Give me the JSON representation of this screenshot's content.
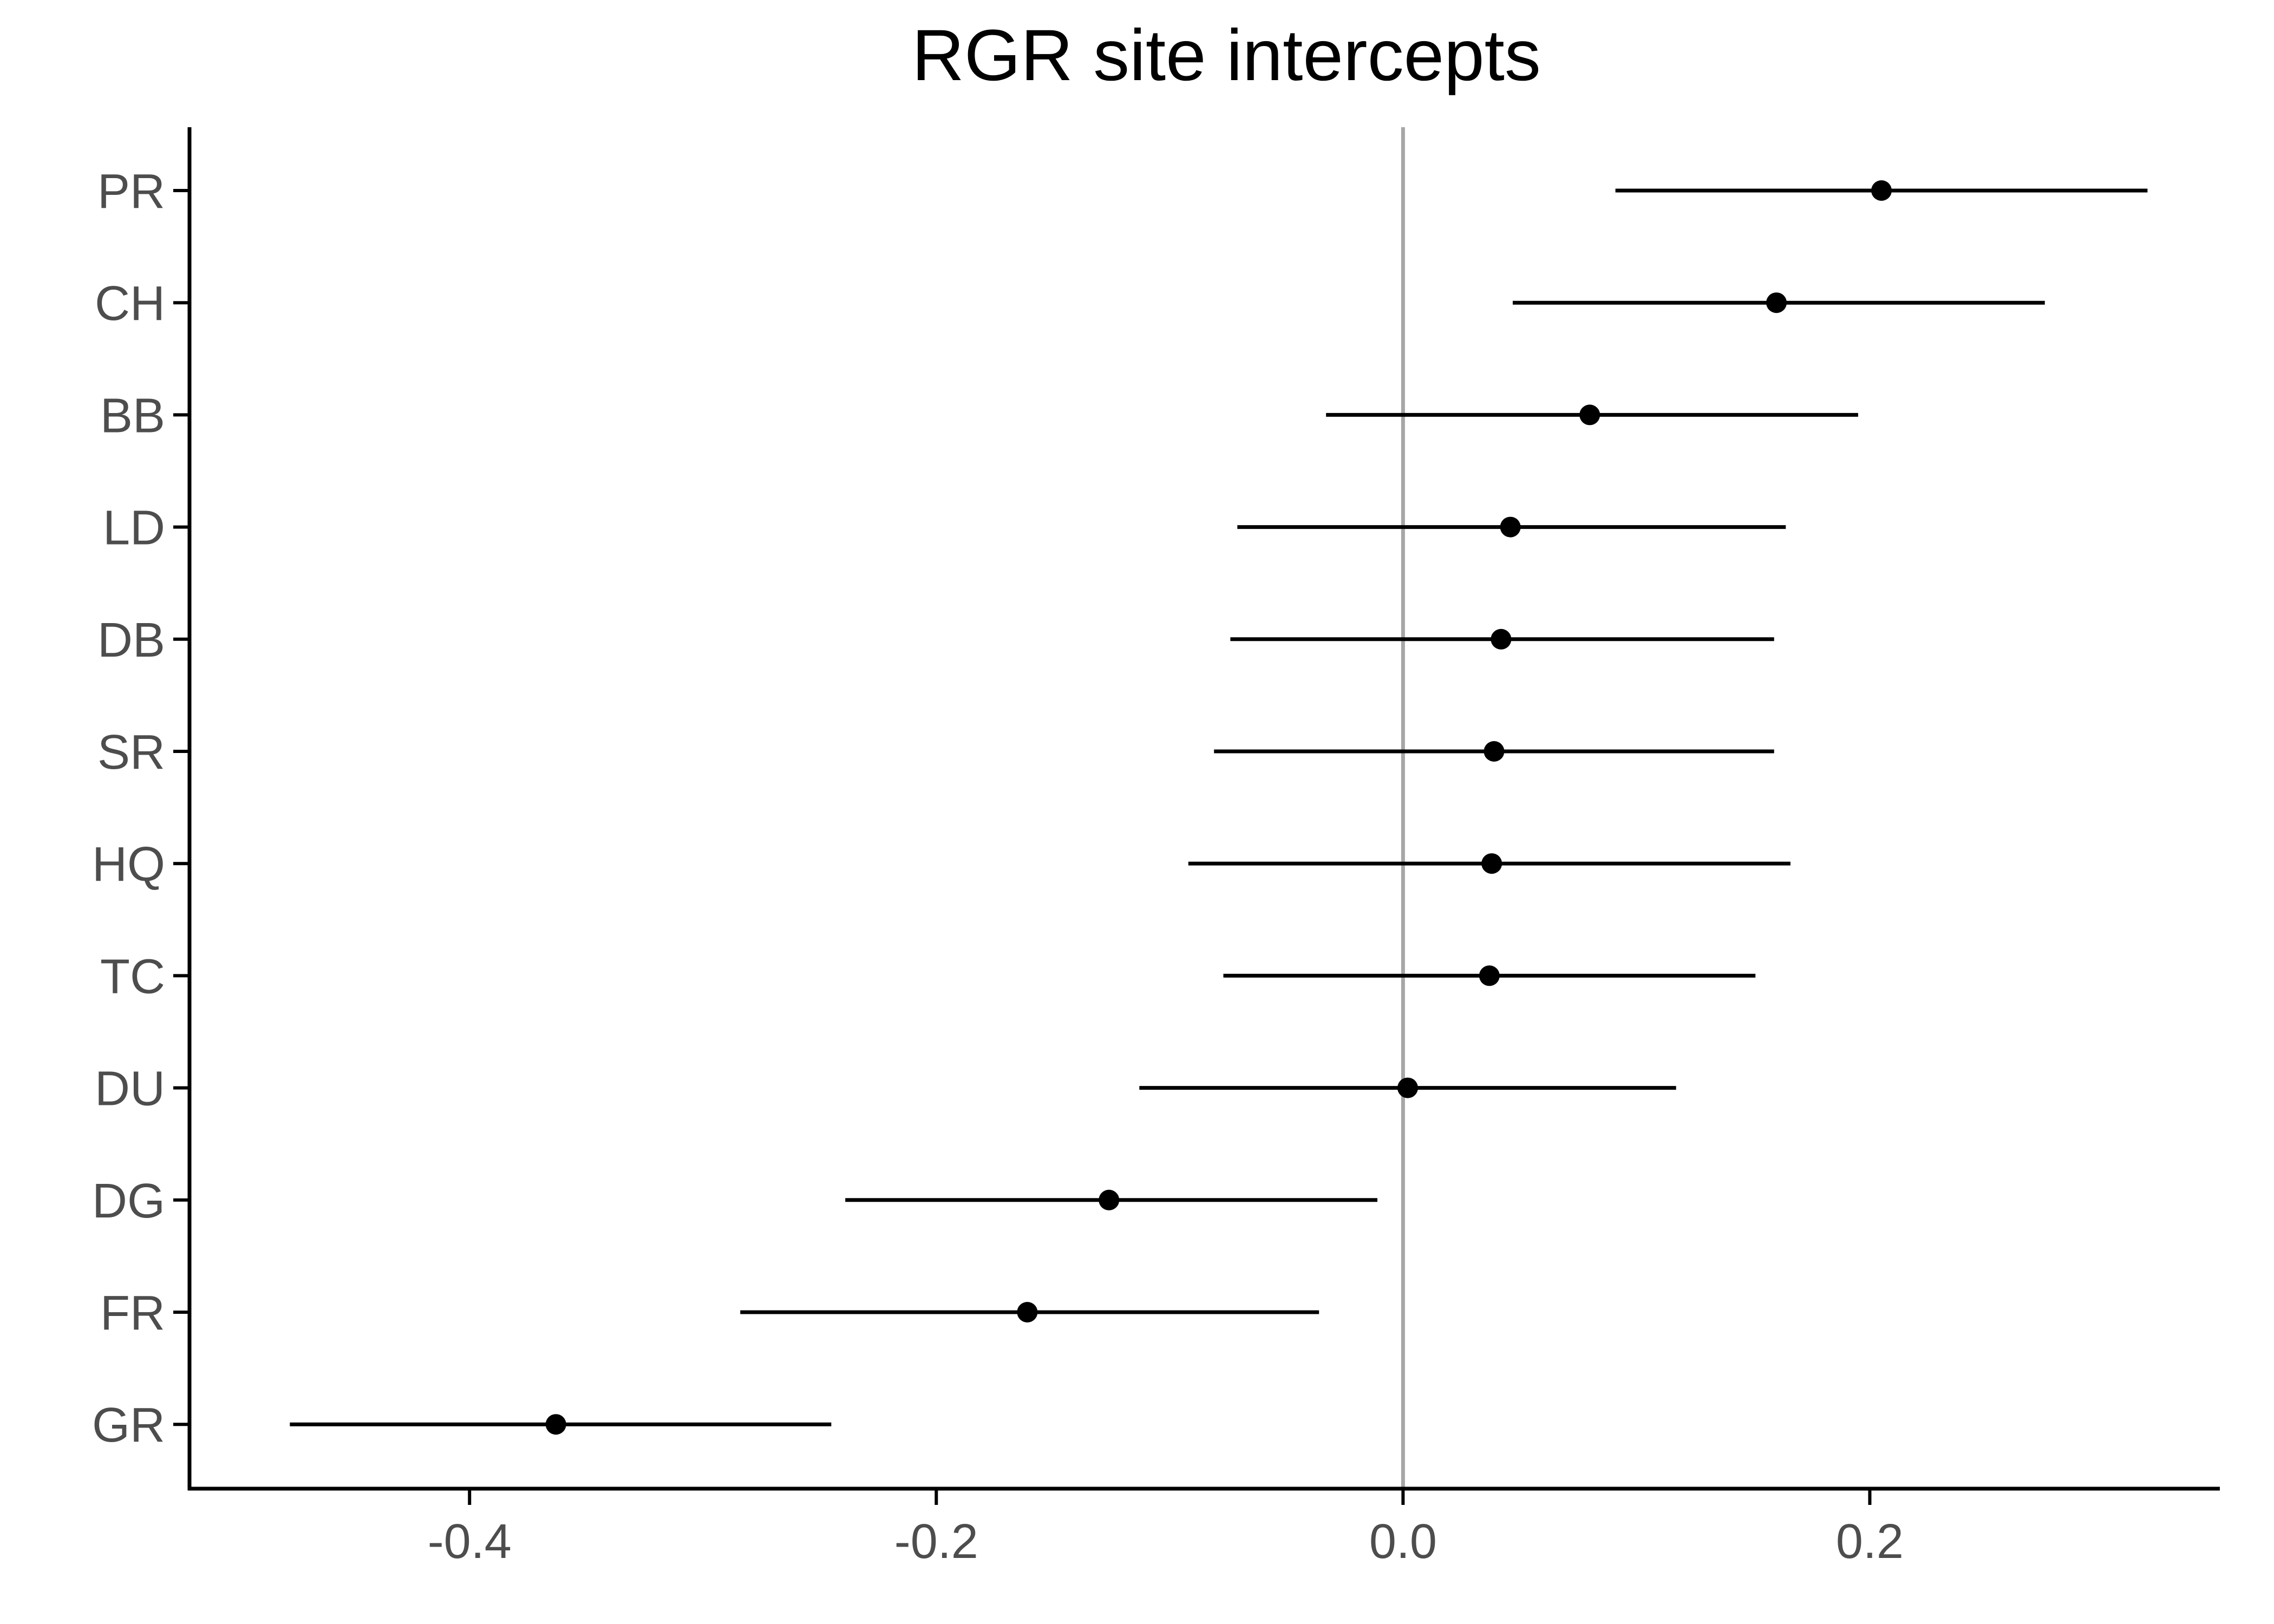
{
  "chart_data": {
    "type": "scatter",
    "title": "RGR site intercepts",
    "xlabel": "",
    "ylabel": "",
    "xlim": [
      -0.52,
      0.35
    ],
    "x_ticks": [
      -0.4,
      -0.2,
      0.0,
      0.2
    ],
    "x_tick_labels": [
      "-0.4",
      "-0.2",
      "0.0",
      "0.2"
    ],
    "reference_line": {
      "x": 0,
      "color": "#a6a6a6"
    },
    "grid": false,
    "legend": "none",
    "colors": {
      "point": "#000000",
      "interval": "#000000",
      "axis": "#000000",
      "tick_label": "#4d4d4d",
      "reference_line": "#a6a6a6"
    },
    "categories": [
      "PR",
      "CH",
      "BB",
      "LD",
      "DB",
      "SR",
      "HQ",
      "TC",
      "DU",
      "DG",
      "FR",
      "GR"
    ],
    "estimates": [
      0.205,
      0.16,
      0.08,
      0.046,
      0.042,
      0.039,
      0.038,
      0.037,
      0.002,
      -0.126,
      -0.161,
      -0.363
    ],
    "lower": [
      0.091,
      0.047,
      -0.033,
      -0.071,
      -0.074,
      -0.081,
      -0.092,
      -0.077,
      -0.113,
      -0.239,
      -0.284,
      -0.477
    ],
    "upper": [
      0.319,
      0.275,
      0.195,
      0.164,
      0.159,
      0.159,
      0.166,
      0.151,
      0.117,
      -0.011,
      -0.036,
      -0.245
    ]
  }
}
